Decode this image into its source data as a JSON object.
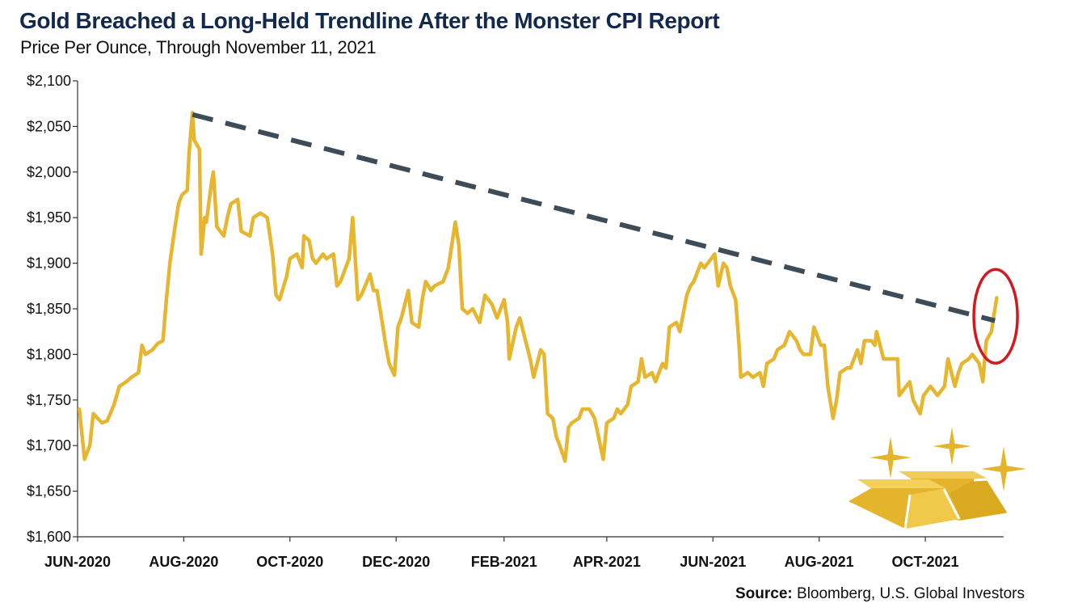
{
  "title": "Gold Breached a Long-Held Trendline After the Monster CPI Report",
  "subtitle": "Price Per Ounce, Through November 11, 2021",
  "source_label": "Source:",
  "source_text": "Bloomberg, U.S. Global Investors",
  "colors": {
    "line": "#e6b630",
    "trendline": "#3d4c57",
    "circle": "#d1191f",
    "title": "#13294b",
    "gold_bar": "#e4b52c"
  },
  "icons": [
    "gold-bars-icon",
    "sparkle-icon"
  ],
  "chart_data": {
    "type": "line",
    "title": "Gold Breached a Long-Held Trendline After the Monster CPI Report",
    "subtitle": "Price Per Ounce, Through November 11, 2021",
    "xlabel": "",
    "ylabel": "",
    "ylim": [
      1600,
      2100
    ],
    "y_ticks": [
      2100,
      2050,
      2000,
      1950,
      1900,
      1850,
      1800,
      1750,
      1700,
      1650,
      1600
    ],
    "y_tick_labels": [
      "$2,100",
      "$2,050",
      "$2,000",
      "$1,950",
      "$1,900",
      "$1,850",
      "$1,800",
      "$1,750",
      "$1,700",
      "$1,650",
      "$1,600"
    ],
    "x_range": [
      "2020-06-01",
      "2021-11-15"
    ],
    "x_ticks": [
      {
        "date": "2020-06-01",
        "label": "JUN-2020"
      },
      {
        "date": "2020-08-01",
        "label": "AUG-2020"
      },
      {
        "date": "2020-10-01",
        "label": "OCT-2020"
      },
      {
        "date": "2020-12-01",
        "label": "DEC-2020"
      },
      {
        "date": "2021-02-01",
        "label": "FEB-2021"
      },
      {
        "date": "2021-04-01",
        "label": "APR-2021"
      },
      {
        "date": "2021-06-01",
        "label": "JUN-2021"
      },
      {
        "date": "2021-08-01",
        "label": "AUG-2021"
      },
      {
        "date": "2021-10-01",
        "label": "OCT-2021"
      }
    ],
    "grid": false,
    "series": [
      {
        "values": [
          [
            "2020-06-02",
            1740
          ],
          [
            "2020-06-05",
            1685
          ],
          [
            "2020-06-08",
            1700
          ],
          [
            "2020-06-10",
            1735
          ],
          [
            "2020-06-15",
            1725
          ],
          [
            "2020-06-18",
            1727
          ],
          [
            "2020-06-22",
            1745
          ],
          [
            "2020-06-25",
            1765
          ],
          [
            "2020-06-29",
            1770
          ],
          [
            "2020-07-02",
            1775
          ],
          [
            "2020-07-06",
            1780
          ],
          [
            "2020-07-08",
            1810
          ],
          [
            "2020-07-10",
            1800
          ],
          [
            "2020-07-14",
            1805
          ],
          [
            "2020-07-17",
            1812
          ],
          [
            "2020-07-20",
            1815
          ],
          [
            "2020-07-22",
            1860
          ],
          [
            "2020-07-24",
            1900
          ],
          [
            "2020-07-27",
            1940
          ],
          [
            "2020-07-29",
            1965
          ],
          [
            "2020-07-31",
            1975
          ],
          [
            "2020-08-03",
            1980
          ],
          [
            "2020-08-04",
            2020
          ],
          [
            "2020-08-06",
            2065
          ],
          [
            "2020-08-07",
            2035
          ],
          [
            "2020-08-10",
            2025
          ],
          [
            "2020-08-11",
            1910
          ],
          [
            "2020-08-13",
            1950
          ],
          [
            "2020-08-14",
            1945
          ],
          [
            "2020-08-17",
            1990
          ],
          [
            "2020-08-18",
            2000
          ],
          [
            "2020-08-20",
            1940
          ],
          [
            "2020-08-24",
            1930
          ],
          [
            "2020-08-26",
            1950
          ],
          [
            "2020-08-28",
            1965
          ],
          [
            "2020-09-01",
            1970
          ],
          [
            "2020-09-03",
            1935
          ],
          [
            "2020-09-08",
            1930
          ],
          [
            "2020-09-10",
            1950
          ],
          [
            "2020-09-14",
            1955
          ],
          [
            "2020-09-18",
            1950
          ],
          [
            "2020-09-21",
            1910
          ],
          [
            "2020-09-23",
            1865
          ],
          [
            "2020-09-25",
            1860
          ],
          [
            "2020-09-29",
            1885
          ],
          [
            "2020-10-01",
            1905
          ],
          [
            "2020-10-05",
            1910
          ],
          [
            "2020-10-08",
            1895
          ],
          [
            "2020-10-09",
            1930
          ],
          [
            "2020-10-12",
            1925
          ],
          [
            "2020-10-14",
            1905
          ],
          [
            "2020-10-16",
            1900
          ],
          [
            "2020-10-20",
            1910
          ],
          [
            "2020-10-22",
            1905
          ],
          [
            "2020-10-26",
            1910
          ],
          [
            "2020-10-28",
            1875
          ],
          [
            "2020-10-30",
            1880
          ],
          [
            "2020-11-04",
            1905
          ],
          [
            "2020-11-06",
            1950
          ],
          [
            "2020-11-09",
            1860
          ],
          [
            "2020-11-11",
            1865
          ],
          [
            "2020-11-16",
            1888
          ],
          [
            "2020-11-18",
            1870
          ],
          [
            "2020-11-20",
            1870
          ],
          [
            "2020-11-23",
            1835
          ],
          [
            "2020-11-25",
            1810
          ],
          [
            "2020-11-27",
            1790
          ],
          [
            "2020-11-30",
            1777
          ],
          [
            "2020-12-02",
            1830
          ],
          [
            "2020-12-04",
            1840
          ],
          [
            "2020-12-08",
            1870
          ],
          [
            "2020-12-10",
            1835
          ],
          [
            "2020-12-14",
            1830
          ],
          [
            "2020-12-16",
            1860
          ],
          [
            "2020-12-18",
            1880
          ],
          [
            "2020-12-21",
            1870
          ],
          [
            "2020-12-23",
            1875
          ],
          [
            "2020-12-28",
            1880
          ],
          [
            "2020-12-31",
            1895
          ],
          [
            "2021-01-04",
            1945
          ],
          [
            "2021-01-06",
            1920
          ],
          [
            "2021-01-08",
            1850
          ],
          [
            "2021-01-11",
            1845
          ],
          [
            "2021-01-14",
            1850
          ],
          [
            "2021-01-18",
            1835
          ],
          [
            "2021-01-21",
            1865
          ],
          [
            "2021-01-25",
            1855
          ],
          [
            "2021-01-28",
            1840
          ],
          [
            "2021-02-01",
            1860
          ],
          [
            "2021-02-03",
            1835
          ],
          [
            "2021-02-04",
            1795
          ],
          [
            "2021-02-08",
            1830
          ],
          [
            "2021-02-10",
            1840
          ],
          [
            "2021-02-12",
            1825
          ],
          [
            "2021-02-16",
            1795
          ],
          [
            "2021-02-18",
            1775
          ],
          [
            "2021-02-22",
            1805
          ],
          [
            "2021-02-24",
            1800
          ],
          [
            "2021-02-26",
            1735
          ],
          [
            "2021-03-01",
            1730
          ],
          [
            "2021-03-03",
            1710
          ],
          [
            "2021-03-05",
            1700
          ],
          [
            "2021-03-08",
            1683
          ],
          [
            "2021-03-10",
            1720
          ],
          [
            "2021-03-12",
            1725
          ],
          [
            "2021-03-16",
            1730
          ],
          [
            "2021-03-18",
            1740
          ],
          [
            "2021-03-22",
            1740
          ],
          [
            "2021-03-25",
            1730
          ],
          [
            "2021-03-30",
            1685
          ],
          [
            "2021-04-01",
            1725
          ],
          [
            "2021-04-05",
            1730
          ],
          [
            "2021-04-07",
            1740
          ],
          [
            "2021-04-09",
            1735
          ],
          [
            "2021-04-13",
            1745
          ],
          [
            "2021-04-15",
            1765
          ],
          [
            "2021-04-19",
            1770
          ],
          [
            "2021-04-21",
            1795
          ],
          [
            "2021-04-23",
            1775
          ],
          [
            "2021-04-27",
            1780
          ],
          [
            "2021-04-29",
            1770
          ],
          [
            "2021-05-03",
            1790
          ],
          [
            "2021-05-05",
            1785
          ],
          [
            "2021-05-07",
            1830
          ],
          [
            "2021-05-11",
            1835
          ],
          [
            "2021-05-13",
            1825
          ],
          [
            "2021-05-17",
            1865
          ],
          [
            "2021-05-19",
            1875
          ],
          [
            "2021-05-21",
            1880
          ],
          [
            "2021-05-25",
            1900
          ],
          [
            "2021-05-27",
            1895
          ],
          [
            "2021-05-31",
            1905
          ],
          [
            "2021-06-02",
            1910
          ],
          [
            "2021-06-04",
            1875
          ],
          [
            "2021-06-07",
            1900
          ],
          [
            "2021-06-09",
            1895
          ],
          [
            "2021-06-11",
            1875
          ],
          [
            "2021-06-14",
            1860
          ],
          [
            "2021-06-16",
            1810
          ],
          [
            "2021-06-17",
            1775
          ],
          [
            "2021-06-21",
            1780
          ],
          [
            "2021-06-24",
            1775
          ],
          [
            "2021-06-28",
            1780
          ],
          [
            "2021-06-30",
            1765
          ],
          [
            "2021-07-02",
            1790
          ],
          [
            "2021-07-06",
            1795
          ],
          [
            "2021-07-08",
            1805
          ],
          [
            "2021-07-12",
            1810
          ],
          [
            "2021-07-15",
            1825
          ],
          [
            "2021-07-19",
            1815
          ],
          [
            "2021-07-21",
            1805
          ],
          [
            "2021-07-23",
            1800
          ],
          [
            "2021-07-27",
            1800
          ],
          [
            "2021-07-29",
            1830
          ],
          [
            "2021-08-02",
            1810
          ],
          [
            "2021-08-04",
            1810
          ],
          [
            "2021-08-06",
            1765
          ],
          [
            "2021-08-09",
            1730
          ],
          [
            "2021-08-11",
            1750
          ],
          [
            "2021-08-13",
            1780
          ],
          [
            "2021-08-17",
            1785
          ],
          [
            "2021-08-19",
            1785
          ],
          [
            "2021-08-23",
            1805
          ],
          [
            "2021-08-25",
            1790
          ],
          [
            "2021-08-27",
            1815
          ],
          [
            "2021-08-31",
            1815
          ],
          [
            "2021-09-02",
            1810
          ],
          [
            "2021-09-03",
            1825
          ],
          [
            "2021-09-07",
            1795
          ],
          [
            "2021-09-09",
            1795
          ],
          [
            "2021-09-13",
            1795
          ],
          [
            "2021-09-15",
            1795
          ],
          [
            "2021-09-16",
            1755
          ],
          [
            "2021-09-20",
            1765
          ],
          [
            "2021-09-22",
            1770
          ],
          [
            "2021-09-24",
            1750
          ],
          [
            "2021-09-28",
            1735
          ],
          [
            "2021-09-30",
            1755
          ],
          [
            "2021-10-04",
            1765
          ],
          [
            "2021-10-06",
            1760
          ],
          [
            "2021-10-08",
            1755
          ],
          [
            "2021-10-12",
            1765
          ],
          [
            "2021-10-14",
            1795
          ],
          [
            "2021-10-18",
            1765
          ],
          [
            "2021-10-20",
            1780
          ],
          [
            "2021-10-22",
            1790
          ],
          [
            "2021-10-26",
            1795
          ],
          [
            "2021-10-28",
            1800
          ],
          [
            "2021-11-01",
            1790
          ],
          [
            "2021-11-03",
            1770
          ],
          [
            "2021-11-05",
            1815
          ],
          [
            "2021-11-08",
            1825
          ],
          [
            "2021-11-10",
            1850
          ],
          [
            "2021-11-11",
            1862
          ]
        ]
      }
    ],
    "trendline": {
      "start": [
        "2020-08-06",
        2063
      ],
      "end": [
        "2021-11-10",
        1837
      ],
      "style": "dashed"
    },
    "annotations": [
      {
        "type": "circle",
        "center": [
          "2021-11-09",
          1840
        ],
        "label": ""
      }
    ]
  }
}
